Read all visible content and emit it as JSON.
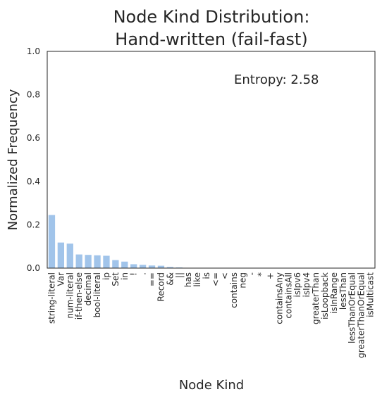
{
  "chart_data": {
    "type": "bar",
    "title_line1": "Node Kind Distribution:",
    "title_line2": "Hand-written (fail-fast)",
    "xlabel": "Node Kind",
    "ylabel": "Normalized Frequency",
    "ylim": [
      0,
      1.0
    ],
    "yticks": [
      "0.0",
      "0.2",
      "0.4",
      "0.6",
      "0.8",
      "1.0"
    ],
    "annotation": "Entropy: 2.58",
    "bar_color": "#a1c4ea",
    "categories": [
      "string-literal",
      "Var",
      "num-literal",
      "if-then-else",
      "decimal",
      "bool-literal",
      "ip",
      "Set",
      "in",
      "!",
      ".",
      "==",
      "Record",
      "&&",
      "||",
      "has",
      "like",
      "is",
      "<=",
      "<",
      "contains",
      "neg",
      "-",
      "*",
      "+",
      "containsAny",
      "containsAll",
      "isIpv6",
      "isIpv4",
      "greaterThan",
      "isLoopback",
      "isInRange",
      "lessThan",
      "lessThanOrEqual",
      "greaterThanOrEqual",
      "isMulticast"
    ],
    "values": [
      0.245,
      0.118,
      0.113,
      0.063,
      0.061,
      0.059,
      0.057,
      0.037,
      0.03,
      0.018,
      0.015,
      0.012,
      0.011,
      0.005,
      0.003,
      0.001,
      0.001,
      0.001,
      0.0005,
      0.0005,
      0.0005,
      0.0003,
      0.0003,
      0.0003,
      0.0003,
      0.0002,
      0.0002,
      0.0002,
      0.0002,
      0.0002,
      0.0002,
      0.0001,
      0.0001,
      0.0001,
      0.0001,
      0.0001
    ]
  }
}
